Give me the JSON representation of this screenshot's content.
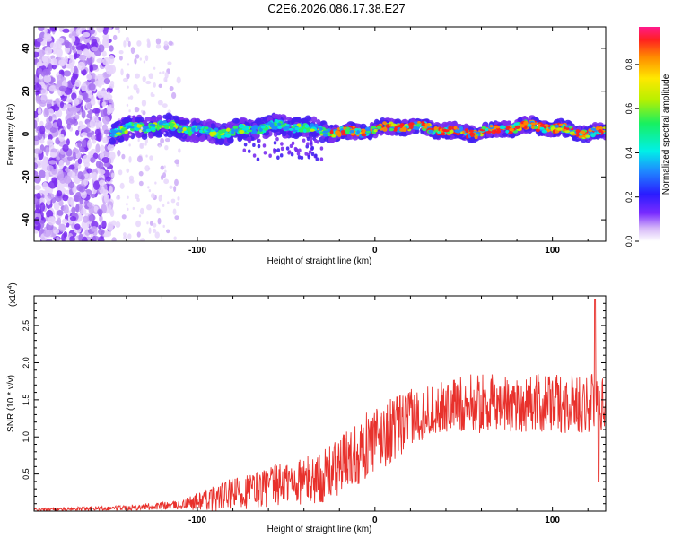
{
  "title": "C2E6.2026.086.17.38.E27",
  "colorbar": {
    "label": "Normalized spectral amplitude",
    "ticks": [
      "0.0",
      "0.2",
      "0.4",
      "0.6",
      "0.8"
    ],
    "tick_values": [
      0.0,
      0.2,
      0.4,
      0.6,
      0.8
    ],
    "range": [
      0,
      0.97
    ]
  },
  "chart_data": [
    {
      "type": "heatmap",
      "xlabel": "Height of straight line (km)",
      "ylabel": "Frequency (Hz)",
      "xlim": [
        -192,
        130
      ],
      "ylim": [
        -50,
        50
      ],
      "xticks": [
        -100,
        0,
        100
      ],
      "xtick_labels": [
        "-100",
        "0",
        "100"
      ],
      "yticks": [
        -40,
        -20,
        0,
        20,
        40
      ],
      "ytick_labels": [
        "-40",
        "-20",
        "0",
        "20",
        "40"
      ],
      "description_band": "noise scatter for x<-150, tonal band near 0-5 Hz for x>-150"
    },
    {
      "type": "line",
      "title": "",
      "xlabel": "Height of straight line (km)",
      "ylabel": "SNR (10 * v/v)",
      "scale_label": "(x10",
      "scale_exp": "4",
      "xlim": [
        -192,
        130
      ],
      "ylim": [
        0,
        2.9
      ],
      "xticks": [
        -100,
        0,
        100
      ],
      "xtick_labels": [
        "-100",
        "0",
        "100"
      ],
      "yticks": [
        0.5,
        1.0,
        1.5,
        2.0,
        2.5
      ],
      "ytick_labels": [
        "0.5",
        "1.0",
        "1.5",
        "2.0",
        "2.5"
      ],
      "color": "#e8312c",
      "trend_x": [
        -192,
        -150,
        -110,
        -90,
        -70,
        -50,
        -30,
        -20,
        -10,
        0,
        10,
        20,
        30,
        40,
        50,
        60,
        70,
        80,
        90,
        100,
        110,
        120,
        130
      ],
      "trend_y": [
        0.02,
        0.04,
        0.08,
        0.18,
        0.28,
        0.38,
        0.45,
        0.6,
        0.8,
        0.95,
        1.1,
        1.25,
        1.35,
        1.4,
        1.45,
        1.45,
        1.45,
        1.45,
        1.45,
        1.45,
        1.45,
        1.45,
        1.45
      ],
      "noise_amp": [
        0.02,
        0.03,
        0.06,
        0.18,
        0.25,
        0.3,
        0.35,
        0.4,
        0.45,
        0.45,
        0.45,
        0.4,
        0.35,
        0.35,
        0.4,
        0.4,
        0.4,
        0.4,
        0.4,
        0.4,
        0.4,
        0.4,
        0.4
      ],
      "peaks": [
        [
          124,
          2.85
        ],
        [
          126,
          0.4
        ]
      ]
    }
  ]
}
